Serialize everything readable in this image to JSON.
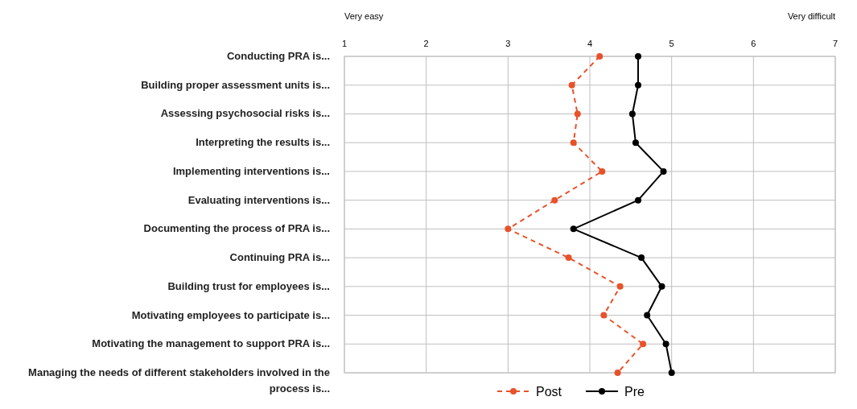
{
  "chart_data": {
    "type": "line",
    "orientation": "horizontal",
    "categories": [
      "Conducting PRA is...",
      "Building proper assessment units is...",
      "Assessing psychosocial risks is...",
      "Interpreting the results is...",
      "Implementing interventions is...",
      "Evaluating interventions is...",
      "Documenting the process of PRA is...",
      "Continuing PRA is...",
      "Building trust for employees is...",
      "Motivating employees to participate is...",
      "Motivating the management to support PRA is...",
      "Managing the needs of different stakeholders involved in the process is..."
    ],
    "series": [
      {
        "name": "Post",
        "color": "#e8522a",
        "line_style": "dashed",
        "values": [
          4.12,
          3.78,
          3.85,
          3.8,
          4.15,
          3.57,
          3.0,
          3.74,
          4.37,
          4.17,
          4.65,
          4.34
        ]
      },
      {
        "name": "Pre",
        "color": "#000000",
        "line_style": "solid",
        "values": [
          4.59,
          4.59,
          4.52,
          4.56,
          4.9,
          4.59,
          3.8,
          4.63,
          4.88,
          4.7,
          4.93,
          5.0
        ]
      }
    ],
    "xlim": [
      1,
      7
    ],
    "xticks": [
      1,
      2,
      3,
      4,
      5,
      6,
      7
    ],
    "annotations": [
      "Very easy",
      "Very difficult"
    ],
    "grid": true,
    "legend": "bottom",
    "marker": "circle"
  }
}
